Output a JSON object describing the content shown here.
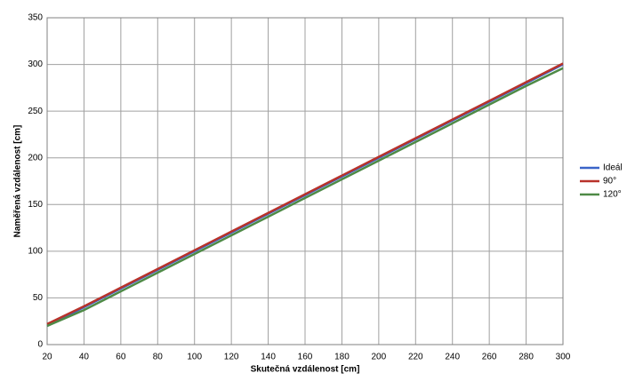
{
  "chart_data": {
    "type": "line",
    "x_label": "Skutečná vzdálenost [cm]",
    "y_label": "Naměřená vzdálenost [cm]",
    "x": [
      20,
      40,
      60,
      80,
      100,
      120,
      140,
      160,
      180,
      200,
      220,
      240,
      260,
      280,
      300
    ],
    "series": [
      {
        "name": "Ideál",
        "color": "#3a64c8",
        "values": [
          20,
          40,
          60,
          80,
          100,
          120,
          140,
          160,
          180,
          200,
          220,
          240,
          260,
          280,
          300
        ]
      },
      {
        "name": "90°",
        "color": "#b8322a",
        "values": [
          22,
          41,
          61,
          81,
          101,
          121,
          141,
          161,
          181,
          201,
          221,
          241,
          261,
          281,
          301
        ]
      },
      {
        "name": "120°",
        "color": "#4e8a46",
        "values": [
          20,
          37,
          57,
          77,
          97,
          117,
          137,
          157,
          177,
          197,
          217,
          237,
          257,
          277,
          296
        ]
      }
    ],
    "xlim": [
      20,
      300
    ],
    "xticks": [
      20,
      40,
      60,
      80,
      100,
      120,
      140,
      160,
      180,
      200,
      220,
      240,
      260,
      280,
      300
    ],
    "ylim": [
      0,
      350
    ],
    "yticks": [
      0,
      50,
      100,
      150,
      200,
      250,
      300,
      350
    ],
    "grid": true,
    "legend": "right"
  }
}
